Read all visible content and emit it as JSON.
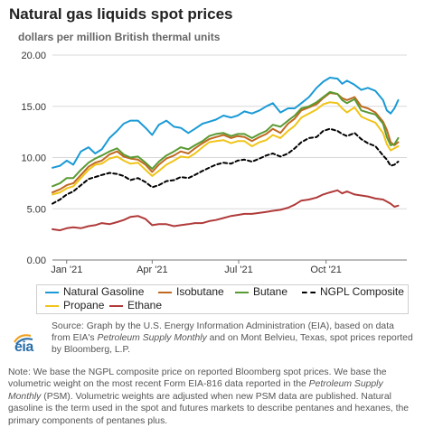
{
  "title": "Natural gas liquids spot prices",
  "subtitle": "dollars per million British thermal units",
  "source_prefix": "Source: Graph by the U.S. Energy Information Administration (EIA), based on data from EIA's ",
  "source_italic": "Petroleum Supply Monthly",
  "source_suffix": " and on Mont Belvieu, Texas, spot prices reported by Bloomberg, L.P.",
  "note_prefix": "Note: We base the NGPL composite price on reported Bloomberg spot prices. We base the volumetric weight on the most recent Form EIA-816 data reported in the ",
  "note_italic": "Petroleum Supply Monthly",
  "note_suffix": " (PSM). Volumetric weights are adjusted when new PSM data are published. Natural gasoline is the term used in the spot and futures markets to describe pentanes and hexanes, the primary components of pentanes plus.",
  "logo_text": "eia",
  "chart_data": {
    "type": "line",
    "y_ticks": [
      "0.00",
      "5.00",
      "10.00",
      "15.00",
      "20.00"
    ],
    "ylim": [
      0,
      20
    ],
    "x_ticks": [
      {
        "label": "Jan '21",
        "day": 15
      },
      {
        "label": "Apr '21",
        "day": 105
      },
      {
        "label": "Jul '21",
        "day": 196
      },
      {
        "label": "Oct '21",
        "day": 288
      }
    ],
    "xlim_days": [
      0,
      373
    ],
    "grid": true,
    "legend_position": "bottom",
    "series": [
      {
        "name": "Natural Gasoline",
        "color": "#1a9ad6",
        "dashed": false,
        "x": [
          0,
          8,
          15,
          22,
          30,
          38,
          45,
          52,
          60,
          68,
          75,
          82,
          90,
          98,
          105,
          112,
          120,
          128,
          135,
          143,
          150,
          158,
          165,
          172,
          180,
          188,
          195,
          202,
          210,
          218,
          225,
          232,
          240,
          248,
          255,
          262,
          270,
          278,
          285,
          292,
          300,
          305,
          310,
          318,
          325,
          332,
          340,
          348,
          352,
          356,
          360,
          364
        ],
        "y": [
          9.0,
          9.2,
          9.7,
          9.3,
          10.6,
          11.0,
          10.4,
          10.8,
          11.9,
          12.6,
          13.3,
          13.6,
          13.6,
          12.9,
          12.2,
          13.2,
          13.6,
          13.0,
          12.9,
          12.4,
          12.8,
          13.3,
          13.5,
          13.7,
          14.1,
          13.9,
          14.1,
          14.5,
          14.3,
          14.6,
          15.0,
          15.3,
          14.4,
          14.8,
          14.8,
          15.3,
          15.9,
          16.8,
          17.4,
          17.8,
          17.7,
          17.2,
          17.5,
          17.1,
          16.6,
          16.8,
          16.5,
          15.6,
          14.6,
          14.3,
          14.8,
          15.6
        ]
      },
      {
        "name": "Isobutane",
        "color": "#c06820",
        "dashed": false,
        "x": [
          0,
          8,
          15,
          22,
          30,
          38,
          45,
          52,
          60,
          68,
          75,
          82,
          90,
          98,
          105,
          112,
          120,
          128,
          135,
          143,
          150,
          158,
          165,
          172,
          180,
          188,
          195,
          202,
          210,
          218,
          225,
          232,
          240,
          248,
          255,
          262,
          270,
          278,
          285,
          292,
          300,
          305,
          310,
          318,
          325,
          332,
          340,
          348,
          352,
          356,
          360,
          364
        ],
        "y": [
          6.6,
          6.9,
          7.3,
          7.5,
          8.3,
          9.1,
          9.5,
          9.7,
          10.3,
          10.6,
          10.1,
          9.9,
          9.8,
          9.3,
          8.6,
          9.3,
          9.9,
          10.2,
          10.6,
          10.4,
          10.9,
          11.4,
          11.8,
          12.0,
          12.2,
          11.9,
          12.1,
          12.0,
          11.6,
          12.0,
          12.3,
          12.8,
          12.4,
          13.3,
          13.8,
          14.6,
          14.9,
          15.2,
          15.8,
          16.3,
          16.2,
          15.8,
          15.6,
          15.9,
          15.0,
          14.8,
          14.4,
          13.5,
          12.7,
          11.5,
          11.2,
          11.5
        ]
      },
      {
        "name": "Butane",
        "color": "#5a9a32",
        "dashed": false,
        "x": [
          0,
          8,
          15,
          22,
          30,
          38,
          45,
          52,
          60,
          68,
          75,
          82,
          90,
          98,
          105,
          112,
          120,
          128,
          135,
          143,
          150,
          158,
          165,
          172,
          180,
          188,
          195,
          202,
          210,
          218,
          225,
          232,
          240,
          248,
          255,
          262,
          270,
          278,
          285,
          292,
          300,
          305,
          310,
          318,
          325,
          332,
          340,
          348,
          352,
          356,
          360,
          364
        ],
        "y": [
          7.2,
          7.5,
          8.0,
          8.0,
          8.8,
          9.5,
          9.9,
          10.2,
          10.6,
          10.9,
          10.3,
          10.0,
          10.1,
          9.5,
          8.9,
          9.6,
          10.2,
          10.6,
          11.0,
          10.8,
          11.2,
          11.6,
          12.1,
          12.3,
          12.4,
          12.1,
          12.3,
          12.3,
          11.9,
          12.3,
          12.6,
          13.2,
          13.0,
          13.6,
          14.1,
          14.8,
          15.0,
          15.4,
          15.9,
          16.4,
          16.2,
          15.6,
          15.3,
          15.7,
          14.6,
          14.4,
          14.2,
          13.3,
          12.0,
          11.2,
          11.3,
          11.9
        ]
      },
      {
        "name": "NGPL Composite",
        "color": "#000000",
        "dashed": true,
        "x": [
          0,
          8,
          15,
          22,
          30,
          38,
          45,
          52,
          60,
          68,
          75,
          82,
          90,
          98,
          105,
          112,
          120,
          128,
          135,
          143,
          150,
          158,
          165,
          172,
          180,
          188,
          195,
          202,
          210,
          218,
          225,
          232,
          240,
          248,
          255,
          262,
          270,
          278,
          285,
          292,
          300,
          305,
          310,
          318,
          325,
          332,
          340,
          348,
          352,
          356,
          360,
          364
        ],
        "y": [
          5.5,
          5.9,
          6.4,
          6.7,
          7.3,
          7.9,
          8.1,
          8.3,
          8.5,
          8.4,
          8.2,
          7.8,
          8.0,
          7.6,
          7.1,
          7.3,
          7.7,
          7.8,
          8.1,
          8.0,
          8.3,
          8.7,
          9.0,
          9.3,
          9.5,
          9.4,
          9.7,
          9.8,
          9.6,
          9.9,
          10.2,
          10.4,
          10.1,
          10.4,
          10.9,
          11.5,
          11.9,
          12.0,
          12.6,
          12.8,
          12.6,
          12.3,
          12.1,
          12.4,
          11.8,
          11.4,
          11.1,
          10.2,
          9.8,
          9.2,
          9.3,
          9.6
        ]
      },
      {
        "name": "Propane",
        "color": "#f0c419",
        "dashed": false,
        "x": [
          0,
          8,
          15,
          22,
          30,
          38,
          45,
          52,
          60,
          68,
          75,
          82,
          90,
          98,
          105,
          112,
          120,
          128,
          135,
          143,
          150,
          158,
          165,
          172,
          180,
          188,
          195,
          202,
          210,
          218,
          225,
          232,
          240,
          248,
          255,
          262,
          270,
          278,
          285,
          292,
          300,
          305,
          310,
          318,
          325,
          332,
          340,
          348,
          352,
          356,
          360,
          364
        ],
        "y": [
          6.4,
          6.6,
          7.0,
          7.2,
          8.0,
          8.8,
          9.3,
          9.4,
          9.9,
          10.1,
          9.7,
          9.4,
          9.5,
          8.8,
          8.2,
          8.7,
          9.3,
          9.7,
          10.1,
          10.0,
          10.4,
          11.0,
          11.5,
          11.6,
          11.7,
          11.4,
          11.6,
          11.6,
          11.1,
          11.5,
          11.7,
          12.2,
          11.9,
          12.6,
          13.1,
          13.9,
          14.3,
          14.7,
          15.2,
          15.4,
          15.3,
          14.8,
          14.4,
          14.9,
          14.0,
          13.7,
          13.4,
          12.4,
          11.3,
          10.7,
          10.9,
          11.1
        ]
      },
      {
        "name": "Ethane",
        "color": "#b03a3a",
        "dashed": false,
        "x": [
          0,
          8,
          15,
          22,
          30,
          38,
          45,
          52,
          60,
          68,
          75,
          82,
          90,
          98,
          105,
          112,
          120,
          128,
          135,
          143,
          150,
          158,
          165,
          172,
          180,
          188,
          195,
          202,
          210,
          218,
          225,
          232,
          240,
          248,
          255,
          262,
          270,
          278,
          285,
          292,
          300,
          305,
          310,
          318,
          325,
          332,
          340,
          348,
          352,
          356,
          360,
          364
        ],
        "y": [
          3.0,
          2.9,
          3.1,
          3.2,
          3.1,
          3.3,
          3.4,
          3.6,
          3.5,
          3.7,
          3.9,
          4.2,
          4.3,
          4.0,
          3.4,
          3.5,
          3.5,
          3.3,
          3.4,
          3.5,
          3.6,
          3.6,
          3.8,
          3.9,
          4.1,
          4.3,
          4.4,
          4.5,
          4.5,
          4.6,
          4.7,
          4.8,
          4.9,
          5.1,
          5.4,
          5.8,
          5.9,
          6.1,
          6.4,
          6.6,
          6.8,
          6.5,
          6.7,
          6.4,
          6.3,
          6.2,
          6.0,
          5.9,
          5.7,
          5.5,
          5.2,
          5.3
        ]
      }
    ]
  }
}
